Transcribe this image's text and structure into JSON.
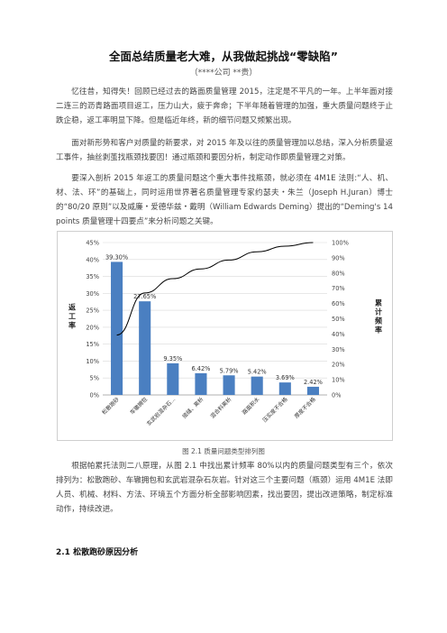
{
  "doc": {
    "title": "全面总结质量老大难，从我做起挑战“零缺陷”",
    "subtitle": "（****公司 **贵）",
    "paragraphs": [
      "忆往昔，知得失！回顾已经过去的路面质量管理 2015，注定是不平凡的一年。上半年面对接二连三的沥青路面项目返工，压力山大，疲于奔命；下半年随着管理的加强，重大质量问题终于止跌企稳，返工率明显下降。但是临近年终，新的细节问题又频繁出现。",
      "面对新形势和客户对质量的新要求，对 2015 年及以往的质量管理加以总结，深入分析质量返工事件，抽丝剥茧找瓶颈找要因！通过瓶颈和要因分析，制定动作即质量管理之对策。",
      "要深入剖析 2015 年返工的质量问题这个重大事件找瓶颈，就必须在 4M1E 法则:“人、机、材、法、环”的基础上，同时运用世界著名质量管理专家约瑟夫・朱兰（Joseph H.Juran）博士的“80/20 原则”以及威廉・爱德华兹・戴明（William Edwards Deming）提出的“Deming's 14 points 质量管理十四要点”来分析问题之关键。",
      "根据帕累托法则二八原理，从图 2.1 中找出累计频率 80%以内的质量问题类型有三个，依次排列为：松散跑砂、车辙拥包和玄武岩混杂石灰岩。针对这三个主要问题（瓶颈）运用 4M1E 法即人员、机械、材料、方法、环境五个方面分析全部影响因素，找出要因，提出改进策略，制定标准动作，持续改进。"
    ],
    "caption": "图 2.1  质量问题类型排列图",
    "section_heading": "2.1 松散跑砂原因分析"
  },
  "chart_data": {
    "type": "bar",
    "categories": [
      "松散跑砂",
      "车辙拥包",
      "玄武岩混杂石...",
      "接缝、离析",
      "混合料离析",
      "路面积水",
      "压实度不合格",
      "厚度不合格"
    ],
    "values": [
      39.3,
      27.65,
      9.35,
      6.42,
      5.79,
      5.42,
      3.69,
      2.42
    ],
    "value_labels": [
      "39.30%",
      "27.65%",
      "9.35%",
      "6.42%",
      "5.79%",
      "5.42%",
      "3.69%",
      "2.42%"
    ],
    "cumulative": [
      39.3,
      66.95,
      76.3,
      82.72,
      88.51,
      93.93,
      97.62,
      100.0
    ],
    "ylabel": "返工率",
    "y2label": "累计频率",
    "ylim": [
      0,
      45
    ],
    "y2lim": [
      0,
      100
    ],
    "yticks": [
      "0%",
      "5%",
      "10%",
      "15%",
      "20%",
      "25%",
      "30%",
      "35%",
      "40%",
      "45%"
    ],
    "y2ticks": [
      "0%",
      "10%",
      "20%",
      "30%",
      "40%",
      "50%",
      "60%",
      "70%",
      "80%",
      "90%",
      "100%"
    ],
    "colors": {
      "bar": "#4a7fc1",
      "line": "#000000",
      "grid": "#d9d9d9"
    }
  }
}
